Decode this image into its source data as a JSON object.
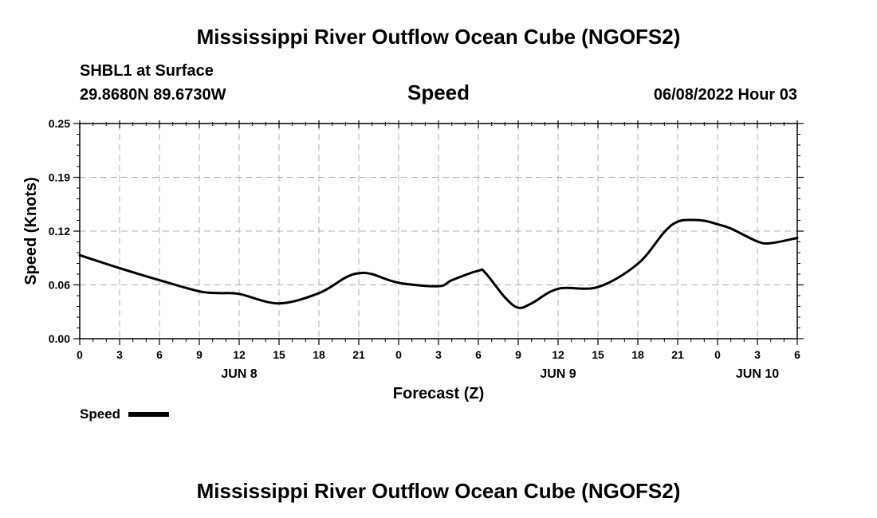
{
  "page": {
    "title_top": "Mississippi River Outflow Ocean Cube (NGOFS2)",
    "title_bottom": "Mississippi River Outflow Ocean Cube (NGOFS2)",
    "station": "SHBL1 at Surface",
    "coords": "29.8680N  89.6730W",
    "timestamp": "06/08/2022 Hour 03"
  },
  "chart_data": {
    "type": "line",
    "title": "Speed",
    "xlabel": "Forecast (Z)",
    "ylabel": "Speed (Knots)",
    "xlim": [
      0,
      54
    ],
    "ylim": [
      0,
      0.25
    ],
    "yticks": [
      {
        "value": 0.0,
        "label": "0.00"
      },
      {
        "value": 0.0625,
        "label": "0.06"
      },
      {
        "value": 0.125,
        "label": "0.12"
      },
      {
        "value": 0.1875,
        "label": "0.19"
      },
      {
        "value": 0.25,
        "label": "0.25"
      }
    ],
    "xticks": [
      {
        "value": 0,
        "label": "0"
      },
      {
        "value": 3,
        "label": "3"
      },
      {
        "value": 6,
        "label": "6"
      },
      {
        "value": 9,
        "label": "9"
      },
      {
        "value": 12,
        "label": "12"
      },
      {
        "value": 15,
        "label": "15"
      },
      {
        "value": 18,
        "label": "18"
      },
      {
        "value": 21,
        "label": "21"
      },
      {
        "value": 24,
        "label": "0"
      },
      {
        "value": 27,
        "label": "3"
      },
      {
        "value": 30,
        "label": "6"
      },
      {
        "value": 33,
        "label": "9"
      },
      {
        "value": 36,
        "label": "12"
      },
      {
        "value": 39,
        "label": "15"
      },
      {
        "value": 42,
        "label": "18"
      },
      {
        "value": 45,
        "label": "21"
      },
      {
        "value": 48,
        "label": "0"
      },
      {
        "value": 51,
        "label": "3"
      },
      {
        "value": 54,
        "label": "6"
      }
    ],
    "date_labels": [
      {
        "value": 12,
        "label": "JUN 8"
      },
      {
        "value": 36,
        "label": "JUN 9"
      },
      {
        "value": 51,
        "label": "JUN 10"
      }
    ],
    "grid": true,
    "legend": {
      "position": "bottom-left",
      "entries": [
        "Speed"
      ]
    },
    "series": [
      {
        "name": "Speed",
        "x": [
          0,
          3,
          6,
          9,
          10.5,
          12,
          15,
          18,
          20,
          21,
          22,
          24,
          27,
          28,
          30,
          30.5,
          32,
          33,
          34,
          36,
          39,
          42,
          44,
          45,
          46,
          47,
          48,
          49,
          51,
          52,
          54
        ],
        "y": [
          0.097,
          0.082,
          0.068,
          0.055,
          0.053,
          0.052,
          0.041,
          0.053,
          0.071,
          0.076,
          0.075,
          0.065,
          0.061,
          0.068,
          0.079,
          0.077,
          0.048,
          0.036,
          0.041,
          0.058,
          0.06,
          0.087,
          0.124,
          0.136,
          0.138,
          0.137,
          0.133,
          0.128,
          0.113,
          0.111,
          0.117
        ]
      }
    ]
  }
}
